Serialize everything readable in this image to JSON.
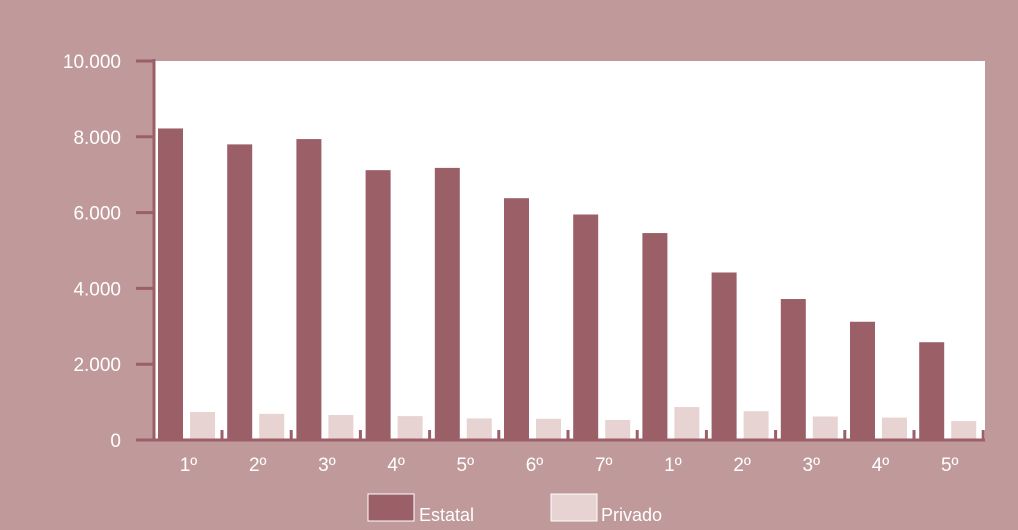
{
  "chart_data": {
    "type": "bar",
    "categories": [
      "1º",
      "2º",
      "3º",
      "4º",
      "5º",
      "6º",
      "7º",
      "1º",
      "2º",
      "3º",
      "4º",
      "5º"
    ],
    "series": [
      {
        "name": "Estatal",
        "color": "#9b5f67",
        "values": [
          8220,
          7800,
          7940,
          7120,
          7180,
          6380,
          5950,
          5460,
          4420,
          3720,
          3120,
          2580
        ]
      },
      {
        "name": "Privado",
        "color": "#e8d3d3",
        "values": [
          740,
          690,
          660,
          630,
          570,
          560,
          530,
          870,
          760,
          620,
          590,
          500
        ]
      }
    ],
    "ylim": [
      0,
      10000
    ],
    "yticks": [
      0,
      2000,
      4000,
      6000,
      8000,
      10000
    ],
    "ytick_labels": [
      "0",
      "2.000",
      "4.000",
      "6.000",
      "8.000",
      "10.000"
    ],
    "title": "",
    "xlabel": "",
    "ylabel": "",
    "grid": false,
    "legend_position": "bottom-center",
    "background_color": "#c09a9a",
    "plot_area_color": "#ffffff",
    "axis_color": "#9b5f67"
  }
}
